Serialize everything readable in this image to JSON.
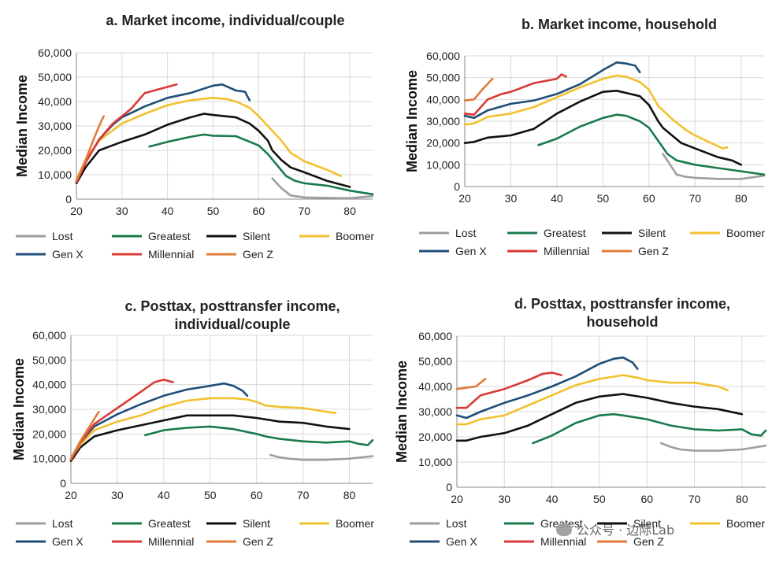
{
  "watermark": "公众号 · 边际Lab",
  "chart_data": [
    {
      "type": "line",
      "title": "a. Market income, individual/couple",
      "ylabel": "Median Income",
      "xlabel": "",
      "xlim": [
        20,
        85
      ],
      "ylim": [
        0,
        60000
      ],
      "xticks": [
        20,
        30,
        40,
        50,
        60,
        70,
        80
      ],
      "yticks": [
        0,
        10000,
        20000,
        30000,
        40000,
        50000,
        60000
      ],
      "ytick_labels": [
        "0",
        "10,000",
        "20,000",
        "30,000",
        "40,000",
        "50,000",
        "60,000"
      ],
      "grid": true,
      "legend_position": "bottom",
      "legend_layout": [
        [
          "Lost",
          "Greatest",
          "Silent",
          "Boomer"
        ],
        [
          "Gen X",
          "Millennial",
          "Gen Z"
        ]
      ],
      "series": [
        {
          "name": "Lost",
          "color": "#9e9e9e",
          "x": [
            63,
            65,
            67,
            70,
            75,
            80,
            85
          ],
          "y": [
            8500,
            4500,
            1500,
            700,
            500,
            400,
            1200
          ]
        },
        {
          "name": "Greatest",
          "color": "#1a7a4c",
          "x": [
            36,
            40,
            45,
            48,
            50,
            55,
            60,
            62,
            64,
            66,
            68,
            70,
            75,
            80,
            85
          ],
          "y": [
            21500,
            23500,
            25500,
            26500,
            26000,
            25800,
            22000,
            18500,
            14000,
            9500,
            7500,
            6500,
            5500,
            3500,
            2000
          ]
        },
        {
          "name": "Silent",
          "color": "#111111",
          "x": [
            20,
            22,
            25,
            30,
            35,
            40,
            45,
            48,
            50,
            55,
            58,
            60,
            62,
            63,
            65,
            67,
            70,
            75,
            80
          ],
          "y": [
            6500,
            13000,
            20000,
            23500,
            26500,
            30500,
            33500,
            35000,
            34500,
            33500,
            31000,
            28000,
            24000,
            20000,
            16000,
            13000,
            11000,
            7500,
            5000
          ]
        },
        {
          "name": "Boomer",
          "color": "#f2c12e",
          "x": [
            20,
            22,
            25,
            30,
            35,
            40,
            45,
            50,
            53,
            55,
            58,
            60,
            62,
            65,
            67,
            70,
            75,
            78
          ],
          "y": [
            8000,
            16000,
            24000,
            31000,
            35000,
            38500,
            40500,
            41500,
            41000,
            40000,
            37500,
            34000,
            30000,
            24000,
            19000,
            15500,
            12000,
            9500
          ]
        },
        {
          "name": "Gen X",
          "color": "#1f4e79",
          "x": [
            20,
            22,
            25,
            28,
            30,
            35,
            40,
            45,
            50,
            52,
            55,
            57,
            58
          ],
          "y": [
            7000,
            15000,
            24500,
            30500,
            33500,
            38000,
            41500,
            43500,
            46500,
            47000,
            44500,
            44000,
            40500
          ]
        },
        {
          "name": "Millennial",
          "color": "#d93a35",
          "x": [
            20,
            22,
            25,
            28,
            30,
            32,
            35,
            38,
            40,
            42
          ],
          "y": [
            7000,
            15000,
            24500,
            31000,
            34000,
            37000,
            43500,
            45000,
            46000,
            47000
          ]
        },
        {
          "name": "Gen Z",
          "color": "#e07b39",
          "x": [
            20,
            22,
            24,
            25,
            26
          ],
          "y": [
            7500,
            16000,
            25500,
            30000,
            34000
          ]
        }
      ]
    },
    {
      "type": "line",
      "title": "b. Market income, household",
      "ylabel": "Median Income",
      "xlabel": "",
      "xlim": [
        20,
        85
      ],
      "ylim": [
        0,
        60000
      ],
      "xticks": [
        20,
        30,
        40,
        50,
        60,
        70,
        80
      ],
      "yticks": [
        0,
        10000,
        20000,
        30000,
        40000,
        50000,
        60000
      ],
      "ytick_labels": [
        "0",
        "10,000",
        "20,000",
        "30,000",
        "40,000",
        "50,000",
        "60,000"
      ],
      "grid": true,
      "legend_position": "bottom",
      "legend_layout": [
        [
          "Lost",
          "Greatest",
          "Silent",
          "Boomer"
        ],
        [
          "Gen X",
          "Millennial",
          "Gen Z"
        ]
      ],
      "series": [
        {
          "name": "Lost",
          "color": "#9e9e9e",
          "x": [
            63,
            64,
            66,
            68,
            70,
            75,
            80,
            85
          ],
          "y": [
            15000,
            12000,
            5500,
            4500,
            4000,
            3500,
            3500,
            5000
          ]
        },
        {
          "name": "Greatest",
          "color": "#1a7a4c",
          "x": [
            36,
            40,
            45,
            50,
            53,
            55,
            58,
            60,
            62,
            64,
            66,
            70,
            75,
            80,
            85
          ],
          "y": [
            19000,
            22000,
            27500,
            31500,
            33000,
            32500,
            30000,
            27000,
            21000,
            15000,
            12000,
            10000,
            8500,
            7000,
            5500
          ]
        },
        {
          "name": "Silent",
          "color": "#111111",
          "x": [
            20,
            22,
            25,
            30,
            35,
            40,
            45,
            50,
            53,
            55,
            58,
            60,
            62,
            63,
            65,
            67,
            70,
            75,
            78,
            80
          ],
          "y": [
            20000,
            20500,
            22500,
            23500,
            26500,
            33500,
            39000,
            43500,
            44000,
            43000,
            41500,
            37500,
            30000,
            27000,
            23500,
            20000,
            17500,
            13500,
            12000,
            10000
          ]
        },
        {
          "name": "Boomer",
          "color": "#f2c12e",
          "x": [
            20,
            22,
            25,
            30,
            35,
            40,
            45,
            50,
            53,
            55,
            58,
            60,
            62,
            65,
            68,
            70,
            73,
            76,
            77
          ],
          "y": [
            28500,
            29000,
            32000,
            33500,
            36500,
            41000,
            45500,
            49500,
            51000,
            50500,
            48000,
            44500,
            37000,
            31000,
            26000,
            23500,
            20500,
            17500,
            18000
          ]
        },
        {
          "name": "Gen X",
          "color": "#1f4e79",
          "x": [
            20,
            22,
            25,
            30,
            35,
            40,
            45,
            50,
            53,
            55,
            57,
            58
          ],
          "y": [
            32500,
            31500,
            35000,
            38000,
            39500,
            42500,
            47000,
            53500,
            57000,
            56500,
            55500,
            52500
          ]
        },
        {
          "name": "Millennial",
          "color": "#d93a35",
          "x": [
            20,
            22,
            25,
            28,
            30,
            35,
            40,
            41,
            42
          ],
          "y": [
            33500,
            33000,
            40000,
            42500,
            43500,
            47500,
            49500,
            51500,
            50500
          ]
        },
        {
          "name": "Gen Z",
          "color": "#e07b39",
          "x": [
            20,
            22,
            24,
            26
          ],
          "y": [
            39500,
            40000,
            45000,
            49500
          ]
        }
      ]
    },
    {
      "type": "line",
      "title": "c. Posttax, posttransfer income, individual/couple",
      "ylabel": "Median Income",
      "xlabel": "",
      "xlim": [
        20,
        85
      ],
      "ylim": [
        0,
        60000
      ],
      "xticks": [
        20,
        30,
        40,
        50,
        60,
        70,
        80
      ],
      "yticks": [
        0,
        10000,
        20000,
        30000,
        40000,
        50000,
        60000
      ],
      "ytick_labels": [
        "0",
        "10,000",
        "20,000",
        "30,000",
        "40,000",
        "50,000",
        "60,000"
      ],
      "grid": true,
      "legend_position": "bottom",
      "legend_layout": [
        [
          "Lost",
          "Greatest",
          "Silent",
          "Boomer"
        ],
        [
          "Gen X",
          "Millennial",
          "Gen Z"
        ]
      ],
      "series": [
        {
          "name": "Lost",
          "color": "#9e9e9e",
          "x": [
            63,
            65,
            67,
            70,
            75,
            80,
            85
          ],
          "y": [
            11500,
            10500,
            10000,
            9500,
            9500,
            10000,
            11000
          ]
        },
        {
          "name": "Greatest",
          "color": "#1a7a4c",
          "x": [
            36,
            40,
            45,
            50,
            55,
            60,
            62,
            65,
            70,
            75,
            80,
            82,
            84,
            85
          ],
          "y": [
            19500,
            21500,
            22500,
            23000,
            22000,
            20000,
            19000,
            18000,
            17000,
            16500,
            17000,
            16000,
            15500,
            17500
          ]
        },
        {
          "name": "Silent",
          "color": "#111111",
          "x": [
            20,
            22,
            25,
            30,
            35,
            40,
            45,
            50,
            55,
            60,
            65,
            70,
            75,
            80
          ],
          "y": [
            9000,
            14500,
            19000,
            21500,
            23500,
            25500,
            27500,
            27500,
            27500,
            26500,
            25000,
            24500,
            23000,
            22000
          ]
        },
        {
          "name": "Boomer",
          "color": "#f2c12e",
          "x": [
            20,
            22,
            25,
            30,
            35,
            40,
            45,
            50,
            55,
            58,
            60,
            62,
            65,
            70,
            75,
            77
          ],
          "y": [
            10000,
            15500,
            21500,
            25000,
            27500,
            31000,
            33500,
            34500,
            34500,
            34000,
            33000,
            31500,
            31000,
            30500,
            29000,
            28500
          ]
        },
        {
          "name": "Gen X",
          "color": "#1f4e79",
          "x": [
            20,
            22,
            25,
            30,
            35,
            40,
            45,
            50,
            53,
            55,
            57,
            58
          ],
          "y": [
            9500,
            16500,
            23000,
            28000,
            32000,
            35500,
            38000,
            39500,
            40500,
            39500,
            37500,
            35500
          ]
        },
        {
          "name": "Millennial",
          "color": "#d93a35",
          "x": [
            20,
            22,
            25,
            30,
            35,
            38,
            40,
            42
          ],
          "y": [
            9500,
            16500,
            24000,
            30500,
            37000,
            41000,
            42000,
            41000
          ]
        },
        {
          "name": "Gen Z",
          "color": "#e07b39",
          "x": [
            20,
            22,
            24,
            26
          ],
          "y": [
            10000,
            17000,
            23000,
            29000
          ]
        }
      ]
    },
    {
      "type": "line",
      "title": "d. Posttax, posttransfer income, household",
      "ylabel": "Median Income",
      "xlabel": "",
      "xlim": [
        20,
        85
      ],
      "ylim": [
        0,
        60000
      ],
      "xticks": [
        20,
        30,
        40,
        50,
        60,
        70,
        80
      ],
      "yticks": [
        0,
        10000,
        20000,
        30000,
        40000,
        50000,
        60000
      ],
      "ytick_labels": [
        "0",
        "10,000",
        "20,000",
        "30,000",
        "40,000",
        "50,000",
        "60,000"
      ],
      "grid": true,
      "legend_position": "bottom",
      "legend_layout": [
        [
          "Lost",
          "Greatest",
          "Silent",
          "Boomer"
        ],
        [
          "Gen X",
          "Millennial",
          "Gen Z"
        ]
      ],
      "series": [
        {
          "name": "Lost",
          "color": "#9e9e9e",
          "x": [
            63,
            65,
            67,
            70,
            75,
            80,
            85
          ],
          "y": [
            17500,
            16000,
            15000,
            14500,
            14500,
            15000,
            16500
          ]
        },
        {
          "name": "Greatest",
          "color": "#1a7a4c",
          "x": [
            36,
            40,
            45,
            50,
            53,
            55,
            60,
            65,
            70,
            75,
            80,
            82,
            84,
            85
          ],
          "y": [
            17500,
            20500,
            25500,
            28500,
            29000,
            28500,
            27000,
            24500,
            23000,
            22500,
            23000,
            21000,
            20500,
            22500
          ]
        },
        {
          "name": "Silent",
          "color": "#111111",
          "x": [
            20,
            22,
            25,
            30,
            35,
            40,
            45,
            50,
            55,
            60,
            65,
            70,
            75,
            80
          ],
          "y": [
            18500,
            18500,
            20000,
            21500,
            24500,
            29000,
            33500,
            36000,
            37000,
            35500,
            33500,
            32000,
            31000,
            29000
          ]
        },
        {
          "name": "Boomer",
          "color": "#f2c12e",
          "x": [
            20,
            22,
            25,
            30,
            35,
            40,
            45,
            50,
            55,
            58,
            60,
            65,
            70,
            75,
            77
          ],
          "y": [
            25000,
            25000,
            27000,
            28500,
            32500,
            36500,
            40500,
            43000,
            44500,
            43500,
            42500,
            41500,
            41500,
            40000,
            38500
          ]
        },
        {
          "name": "Gen X",
          "color": "#1f4e79",
          "x": [
            20,
            22,
            25,
            30,
            35,
            40,
            45,
            50,
            53,
            55,
            57,
            58
          ],
          "y": [
            28500,
            27500,
            30000,
            33500,
            36500,
            40000,
            44000,
            49000,
            51000,
            51500,
            49500,
            47000
          ]
        },
        {
          "name": "Millennial",
          "color": "#d93a35",
          "x": [
            20,
            22,
            25,
            30,
            35,
            38,
            40,
            42
          ],
          "y": [
            31500,
            31500,
            36500,
            39000,
            42500,
            45000,
            45500,
            44500
          ]
        },
        {
          "name": "Gen Z",
          "color": "#e07b39",
          "x": [
            20,
            22,
            24,
            26
          ],
          "y": [
            39000,
            39500,
            40000,
            43000
          ]
        }
      ]
    }
  ]
}
